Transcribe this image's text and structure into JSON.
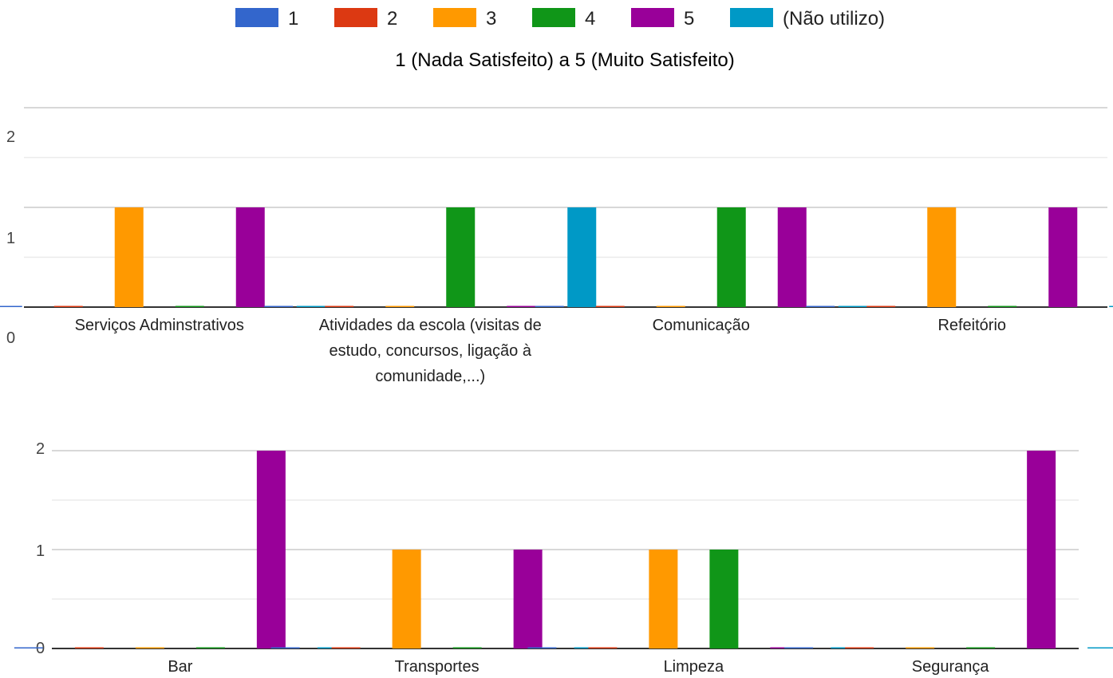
{
  "legend": [
    {
      "label": "1",
      "color": "#3366cc"
    },
    {
      "label": "2",
      "color": "#dc3912"
    },
    {
      "label": "3",
      "color": "#ff9900"
    },
    {
      "label": "4",
      "color": "#109618"
    },
    {
      "label": "5",
      "color": "#990099"
    },
    {
      "label": "(Não utilizo)",
      "color": "#0099c6"
    }
  ],
  "subtitle": "1 (Nada Satisfeito) a 5 (Muito Satisfeito)",
  "chart_data": [
    {
      "type": "bar",
      "categories": [
        "Serviços Adminstrativos",
        "Atividades da escola (visitas de estudo, concursos, ligação à comunidade,...)",
        "Comunicação",
        "Refeitório"
      ],
      "category_lines": [
        [
          "Serviços Adminstrativos"
        ],
        [
          "Atividades da escola (visitas de",
          "estudo, concursos, ligação à",
          "comunidade,...)"
        ],
        [
          "Comunicação"
        ],
        [
          "Refeitório"
        ]
      ],
      "series": [
        {
          "name": "1",
          "values": [
            0,
            0,
            0,
            0
          ]
        },
        {
          "name": "2",
          "values": [
            0,
            0,
            0,
            0
          ]
        },
        {
          "name": "3",
          "values": [
            1,
            0,
            0,
            1
          ]
        },
        {
          "name": "4",
          "values": [
            0,
            1,
            1,
            0
          ]
        },
        {
          "name": "5",
          "values": [
            1,
            0,
            1,
            1
          ]
        },
        {
          "name": "(Não utilizo)",
          "values": [
            0,
            1,
            0,
            0
          ]
        }
      ],
      "ylim": [
        0,
        2
      ],
      "yticks": [
        "0",
        "1",
        "2"
      ],
      "xlabel": "",
      "ylabel": ""
    },
    {
      "type": "bar",
      "categories": [
        "Bar",
        "Transportes",
        "Limpeza",
        "Segurança"
      ],
      "category_lines": [
        [
          "Bar"
        ],
        [
          "Transportes"
        ],
        [
          "Limpeza"
        ],
        [
          "Segurança"
        ]
      ],
      "series": [
        {
          "name": "1",
          "values": [
            0,
            0,
            0,
            0
          ]
        },
        {
          "name": "2",
          "values": [
            0,
            0,
            0,
            0
          ]
        },
        {
          "name": "3",
          "values": [
            0,
            1,
            1,
            0
          ]
        },
        {
          "name": "4",
          "values": [
            0,
            0,
            1,
            0
          ]
        },
        {
          "name": "5",
          "values": [
            2,
            1,
            0,
            2
          ]
        },
        {
          "name": "(Não utilizo)",
          "values": [
            0,
            0,
            0,
            0
          ]
        }
      ],
      "ylim": [
        0,
        2
      ],
      "yticks": [
        "0",
        "1",
        "2"
      ],
      "xlabel": "",
      "ylabel": ""
    }
  ]
}
